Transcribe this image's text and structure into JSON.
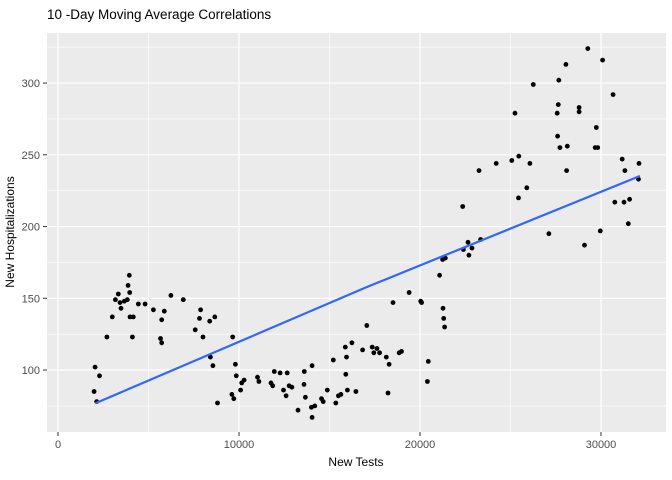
{
  "chart_data": {
    "type": "scatter",
    "title": "10 -Day Moving Average Correlations",
    "xlabel": "New Tests",
    "ylabel": "New Hospitalizations",
    "legend": "none",
    "grid": "white major and minor gridlines on grey panel",
    "x_range": [
      -608,
      33591
    ],
    "y_range": [
      56.8,
      334.9
    ],
    "x_ticks": [
      0,
      10000,
      20000,
      30000
    ],
    "x_tick_labels": [
      "0",
      "10000",
      "20000",
      "30000"
    ],
    "x_minor_ticks": [
      5000,
      15000,
      25000
    ],
    "y_ticks": [
      100,
      150,
      200,
      250,
      300
    ],
    "y_tick_labels": [
      "100",
      "150",
      "200",
      "250",
      "300"
    ],
    "y_minor_ticks": [
      75,
      125,
      175,
      225,
      275,
      325
    ],
    "points": [
      [
        1995,
        85
      ],
      [
        2050,
        102
      ],
      [
        2140,
        78
      ],
      [
        2290,
        96
      ],
      [
        2700,
        123
      ],
      [
        3000,
        137
      ],
      [
        3170,
        149
      ],
      [
        3330,
        153
      ],
      [
        3425,
        147
      ],
      [
        3480,
        143
      ],
      [
        3660,
        148
      ],
      [
        3830,
        149
      ],
      [
        3870,
        159
      ],
      [
        3940,
        166
      ],
      [
        3960,
        154
      ],
      [
        3980,
        137
      ],
      [
        4110,
        123
      ],
      [
        4160,
        137
      ],
      [
        4440,
        146
      ],
      [
        4810,
        146
      ],
      [
        5270,
        142
      ],
      [
        5660,
        122
      ],
      [
        5730,
        135
      ],
      [
        5730,
        119
      ],
      [
        5870,
        141
      ],
      [
        6240,
        152
      ],
      [
        6920,
        149
      ],
      [
        7580,
        128
      ],
      [
        7820,
        136
      ],
      [
        7880,
        142
      ],
      [
        8010,
        123
      ],
      [
        8380,
        134
      ],
      [
        8420,
        109
      ],
      [
        8560,
        103
      ],
      [
        8660,
        137
      ],
      [
        8810,
        77
      ],
      [
        9610,
        83
      ],
      [
        9710,
        80
      ],
      [
        9650,
        123
      ],
      [
        9800,
        104
      ],
      [
        9850,
        96
      ],
      [
        10090,
        86
      ],
      [
        10150,
        91
      ],
      [
        10280,
        93
      ],
      [
        11020,
        95
      ],
      [
        11100,
        92
      ],
      [
        11770,
        91
      ],
      [
        11860,
        89
      ],
      [
        11950,
        99
      ],
      [
        12270,
        98
      ],
      [
        12460,
        86
      ],
      [
        12600,
        82
      ],
      [
        12660,
        98
      ],
      [
        12770,
        89
      ],
      [
        12920,
        88
      ],
      [
        13260,
        72
      ],
      [
        13590,
        90
      ],
      [
        13610,
        99
      ],
      [
        13670,
        81
      ],
      [
        14000,
        74
      ],
      [
        14040,
        103
      ],
      [
        14040,
        67
      ],
      [
        14190,
        75
      ],
      [
        14560,
        80
      ],
      [
        14650,
        78
      ],
      [
        14880,
        86
      ],
      [
        15210,
        107
      ],
      [
        15350,
        77
      ],
      [
        15490,
        82
      ],
      [
        15630,
        83
      ],
      [
        15870,
        116
      ],
      [
        15900,
        97
      ],
      [
        15940,
        109
      ],
      [
        15990,
        86
      ],
      [
        16240,
        119
      ],
      [
        16460,
        85
      ],
      [
        16830,
        114
      ],
      [
        17060,
        131
      ],
      [
        17360,
        116
      ],
      [
        17450,
        112
      ],
      [
        17620,
        115
      ],
      [
        17770,
        112
      ],
      [
        18140,
        109
      ],
      [
        18230,
        84
      ],
      [
        18290,
        104
      ],
      [
        18510,
        147
      ],
      [
        18850,
        112
      ],
      [
        18980,
        113
      ],
      [
        19400,
        154
      ],
      [
        20040,
        148
      ],
      [
        20090,
        147
      ],
      [
        20410,
        92
      ],
      [
        20460,
        106
      ],
      [
        21080,
        166
      ],
      [
        21250,
        177
      ],
      [
        21270,
        143
      ],
      [
        21310,
        136
      ],
      [
        21360,
        130
      ],
      [
        21400,
        178
      ],
      [
        22360,
        214
      ],
      [
        22400,
        184
      ],
      [
        22650,
        189
      ],
      [
        22700,
        180
      ],
      [
        22870,
        185
      ],
      [
        23260,
        239
      ],
      [
        23350,
        191
      ],
      [
        24210,
        244
      ],
      [
        25070,
        246
      ],
      [
        25250,
        279
      ],
      [
        25440,
        220
      ],
      [
        25460,
        249
      ],
      [
        25900,
        227
      ],
      [
        26070,
        244
      ],
      [
        26260,
        299
      ],
      [
        27120,
        195
      ],
      [
        27580,
        279
      ],
      [
        27600,
        263
      ],
      [
        27640,
        285
      ],
      [
        27670,
        302
      ],
      [
        27730,
        255
      ],
      [
        28060,
        313
      ],
      [
        28100,
        239
      ],
      [
        28140,
        256
      ],
      [
        28790,
        283
      ],
      [
        28790,
        280
      ],
      [
        29090,
        187
      ],
      [
        29270,
        324
      ],
      [
        29680,
        255
      ],
      [
        29740,
        269
      ],
      [
        29820,
        255
      ],
      [
        29960,
        197
      ],
      [
        30090,
        316
      ],
      [
        30670,
        292
      ],
      [
        30760,
        217
      ],
      [
        31170,
        247
      ],
      [
        31270,
        217
      ],
      [
        31320,
        239
      ],
      [
        31510,
        202
      ],
      [
        31580,
        219
      ],
      [
        32070,
        233
      ],
      [
        32100,
        244
      ]
    ],
    "trend_line": {
      "type": "linear-smooth",
      "points": [
        [
          2100,
          77
        ],
        [
          17000,
          157.5
        ],
        [
          32100,
          235
        ]
      ],
      "color": "#3366FF"
    },
    "colors": {
      "background": "#FFFFFF",
      "panel": "#EBEBEB",
      "gridline": "#FFFFFF",
      "point": "#000000",
      "trend_line": "#3366FF",
      "tick_text": "#4D4D4D",
      "tick_mark": "#333333",
      "title_text": "#000000"
    }
  }
}
